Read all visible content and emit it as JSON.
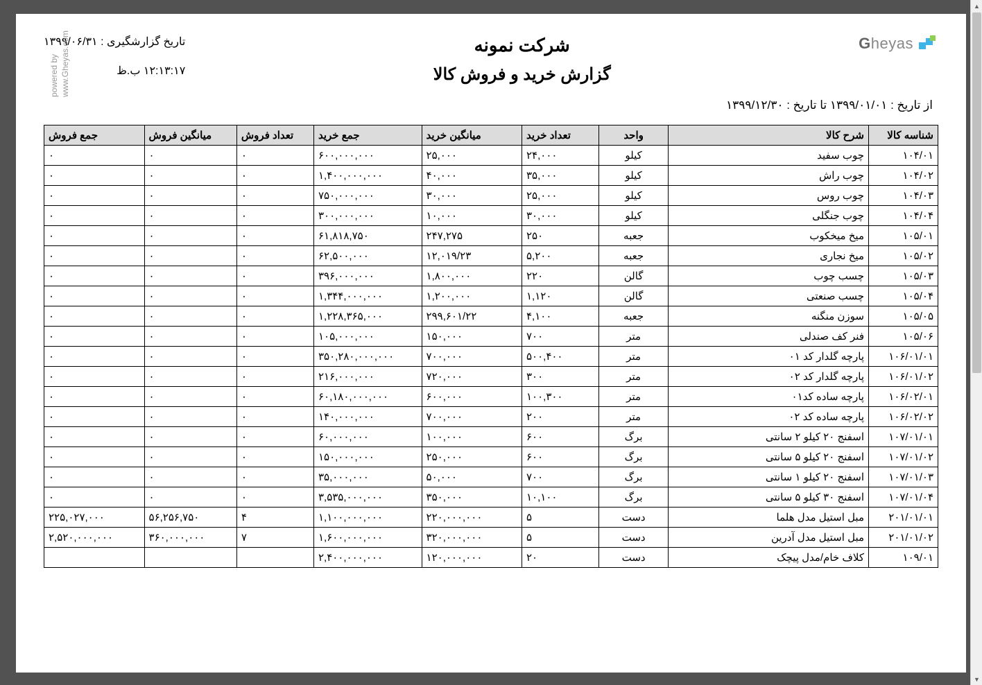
{
  "header": {
    "company_name": "شرکت نمونه",
    "report_title": "گزارش خرید و فروش کالا",
    "report_date_label": "تاریخ گزارشگیری : ۱۳۹۹/۰۶/۳۱",
    "report_time": "۱۲:۱۳:۱۷ ب.ظ",
    "date_range": "از تاریخ : ۱۳۹۹/۰۱/۰۱  تا تاریخ : ۱۳۹۹/۱۲/۳۰",
    "logo_text": "heyas",
    "logo_cap": "G",
    "powered_line1": "powered by",
    "powered_line2": "www.Gheyas.com"
  },
  "table": {
    "columns": [
      "شناسه کالا",
      "شرح کالا",
      "واحد",
      "تعداد خرید",
      "میانگین خرید",
      "جمع خرید",
      "تعداد فروش",
      "میانگین فروش",
      "جمع فروش"
    ],
    "rows": [
      {
        "id": "۱۰۴/۰۱",
        "desc": "چوب سفید",
        "unit": "کیلو",
        "qb": "۲۴,۰۰۰",
        "ab": "۲۵,۰۰۰",
        "sb": "۶۰۰,۰۰۰,۰۰۰",
        "qs": "۰",
        "as": "۰",
        "ss": "۰"
      },
      {
        "id": "۱۰۴/۰۲",
        "desc": "چوب راش",
        "unit": "کیلو",
        "qb": "۳۵,۰۰۰",
        "ab": "۴۰,۰۰۰",
        "sb": "۱,۴۰۰,۰۰۰,۰۰۰",
        "qs": "۰",
        "as": "۰",
        "ss": "۰"
      },
      {
        "id": "۱۰۴/۰۳",
        "desc": "چوب روس",
        "unit": "کیلو",
        "qb": "۲۵,۰۰۰",
        "ab": "۳۰,۰۰۰",
        "sb": "۷۵۰,۰۰۰,۰۰۰",
        "qs": "۰",
        "as": "۰",
        "ss": "۰"
      },
      {
        "id": "۱۰۴/۰۴",
        "desc": "چوب جنگلی",
        "unit": "کیلو",
        "qb": "۳۰,۰۰۰",
        "ab": "۱۰,۰۰۰",
        "sb": "۳۰۰,۰۰۰,۰۰۰",
        "qs": "۰",
        "as": "۰",
        "ss": "۰"
      },
      {
        "id": "۱۰۵/۰۱",
        "desc": "میخ میخکوب",
        "unit": "جعبه",
        "qb": "۲۵۰",
        "ab": "۲۴۷,۲۷۵",
        "sb": "۶۱,۸۱۸,۷۵۰",
        "qs": "۰",
        "as": "۰",
        "ss": "۰"
      },
      {
        "id": "۱۰۵/۰۲",
        "desc": "میخ نجاری",
        "unit": "جعبه",
        "qb": "۵,۲۰۰",
        "ab": "۱۲,۰۱۹/۲۳",
        "sb": "۶۲,۵۰۰,۰۰۰",
        "qs": "۰",
        "as": "۰",
        "ss": "۰"
      },
      {
        "id": "۱۰۵/۰۳",
        "desc": "چسب چوب",
        "unit": "گالن",
        "qb": "۲۲۰",
        "ab": "۱,۸۰۰,۰۰۰",
        "sb": "۳۹۶,۰۰۰,۰۰۰",
        "qs": "۰",
        "as": "۰",
        "ss": "۰"
      },
      {
        "id": "۱۰۵/۰۴",
        "desc": "چسب صنعتی",
        "unit": "گالن",
        "qb": "۱,۱۲۰",
        "ab": "۱,۲۰۰,۰۰۰",
        "sb": "۱,۳۴۴,۰۰۰,۰۰۰",
        "qs": "۰",
        "as": "۰",
        "ss": "۰"
      },
      {
        "id": "۱۰۵/۰۵",
        "desc": "سوزن منگنه",
        "unit": "جعبه",
        "qb": "۴,۱۰۰",
        "ab": "۲۹۹,۶۰۱/۲۲",
        "sb": "۱,۲۲۸,۳۶۵,۰۰۰",
        "qs": "۰",
        "as": "۰",
        "ss": "۰"
      },
      {
        "id": "۱۰۵/۰۶",
        "desc": "فنر کف صندلی",
        "unit": "متر",
        "qb": "۷۰۰",
        "ab": "۱۵۰,۰۰۰",
        "sb": "۱۰۵,۰۰۰,۰۰۰",
        "qs": "۰",
        "as": "۰",
        "ss": "۰"
      },
      {
        "id": "۱۰۶/۰۱/۰۱",
        "desc": "پارچه گلدار کد ۰۱",
        "unit": "متر",
        "qb": "۵۰۰,۴۰۰",
        "ab": "۷۰۰,۰۰۰",
        "sb": "۳۵۰,۲۸۰,۰۰۰,۰۰۰",
        "qs": "۰",
        "as": "۰",
        "ss": "۰"
      },
      {
        "id": "۱۰۶/۰۱/۰۲",
        "desc": "پارچه گلدار کد ۰۲",
        "unit": "متر",
        "qb": "۳۰۰",
        "ab": "۷۲۰,۰۰۰",
        "sb": "۲۱۶,۰۰۰,۰۰۰",
        "qs": "۰",
        "as": "۰",
        "ss": "۰"
      },
      {
        "id": "۱۰۶/۰۲/۰۱",
        "desc": "پارچه ساده کد۰۱",
        "unit": "متر",
        "qb": "۱۰۰,۳۰۰",
        "ab": "۶۰۰,۰۰۰",
        "sb": "۶۰,۱۸۰,۰۰۰,۰۰۰",
        "qs": "۰",
        "as": "۰",
        "ss": "۰"
      },
      {
        "id": "۱۰۶/۰۲/۰۲",
        "desc": "پارچه ساده کد ۰۲",
        "unit": "متر",
        "qb": "۲۰۰",
        "ab": "۷۰۰,۰۰۰",
        "sb": "۱۴۰,۰۰۰,۰۰۰",
        "qs": "۰",
        "as": "۰",
        "ss": "۰"
      },
      {
        "id": "۱۰۷/۰۱/۰۱",
        "desc": "اسفنج  ۲۰ کیلو ۲ سانتی",
        "unit": "برگ",
        "qb": "۶۰۰",
        "ab": "۱۰۰,۰۰۰",
        "sb": "۶۰,۰۰۰,۰۰۰",
        "qs": "۰",
        "as": "۰",
        "ss": "۰"
      },
      {
        "id": "۱۰۷/۰۱/۰۲",
        "desc": "اسفنج ۲۰ کیلو ۵ سانتی",
        "unit": "برگ",
        "qb": "۶۰۰",
        "ab": "۲۵۰,۰۰۰",
        "sb": "۱۵۰,۰۰۰,۰۰۰",
        "qs": "۰",
        "as": "۰",
        "ss": "۰"
      },
      {
        "id": "۱۰۷/۰۱/۰۳",
        "desc": "اسفنج ۲۰ کیلو ۱ سانتی",
        "unit": "برگ",
        "qb": "۷۰۰",
        "ab": "۵۰,۰۰۰",
        "sb": "۳۵,۰۰۰,۰۰۰",
        "qs": "۰",
        "as": "۰",
        "ss": "۰"
      },
      {
        "id": "۱۰۷/۰۱/۰۴",
        "desc": "اسفنج  ۳۰ کیلو ۵ سانتی",
        "unit": "برگ",
        "qb": "۱۰,۱۰۰",
        "ab": "۳۵۰,۰۰۰",
        "sb": "۳,۵۳۵,۰۰۰,۰۰۰",
        "qs": "۰",
        "as": "۰",
        "ss": "۰"
      },
      {
        "id": "۲۰۱/۰۱/۰۱",
        "desc": "مبل استیل مدل هلما",
        "unit": "دست",
        "qb": "۵",
        "ab": "۲۲۰,۰۰۰,۰۰۰",
        "sb": "۱,۱۰۰,۰۰۰,۰۰۰",
        "qs": "۴",
        "as": "۵۶,۲۵۶,۷۵۰",
        "ss": "۲۲۵,۰۲۷,۰۰۰"
      },
      {
        "id": "۲۰۱/۰۱/۰۲",
        "desc": "مبل استیل مدل آدرین",
        "unit": "دست",
        "qb": "۵",
        "ab": "۳۲۰,۰۰۰,۰۰۰",
        "sb": "۱,۶۰۰,۰۰۰,۰۰۰",
        "qs": "۷",
        "as": "۳۶۰,۰۰۰,۰۰۰",
        "ss": "۲,۵۲۰,۰۰۰,۰۰۰"
      },
      {
        "id": "۱۰۹/۰۱",
        "desc": "کلاف خام/مدل پیچک",
        "unit": "دست",
        "qb": "۲۰",
        "ab": "۱۲۰,۰۰۰,۰۰۰",
        "sb": "۲,۴۰۰,۰۰۰,۰۰۰",
        "qs": "",
        "as": "",
        "ss": ""
      }
    ]
  }
}
